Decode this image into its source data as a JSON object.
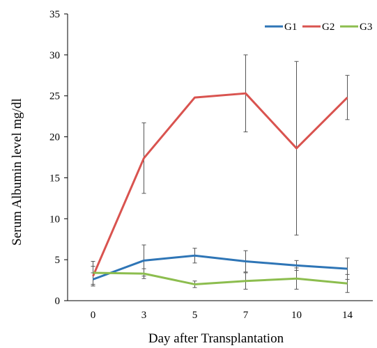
{
  "chart_data": {
    "type": "line",
    "title": "",
    "xlabel": "Day after Transplantation",
    "ylabel": "Serum Albumin level  mg/dl",
    "categories": [
      "0",
      "3",
      "5",
      "7",
      "10",
      "14"
    ],
    "ylim": [
      0,
      35
    ],
    "yticks": [
      0,
      5,
      10,
      15,
      20,
      25,
      30,
      35
    ],
    "grid": false,
    "legend_position": "top-right",
    "series": [
      {
        "name": "G1",
        "color": "#2e75b6",
        "values": [
          2.6,
          4.9,
          5.5,
          4.8,
          4.3,
          3.9
        ],
        "errors": [
          0.8,
          1.9,
          0.9,
          1.3,
          0.6,
          1.3
        ]
      },
      {
        "name": "G2",
        "color": "#d9534f",
        "values": [
          3.0,
          17.4,
          24.8,
          25.3,
          18.6,
          24.8
        ],
        "errors": [
          1.2,
          4.3,
          0,
          4.7,
          10.6,
          2.7
        ]
      },
      {
        "name": "G3",
        "color": "#8cbd4e",
        "values": [
          3.4,
          3.3,
          2.0,
          2.4,
          2.7,
          2.1
        ],
        "errors": [
          1.4,
          0.6,
          0.4,
          1.0,
          1.3,
          1.1
        ]
      }
    ]
  }
}
